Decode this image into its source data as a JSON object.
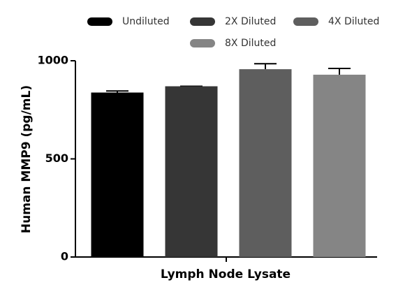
{
  "chart_data": {
    "type": "bar",
    "categories": [
      "Lymph Node Lysate"
    ],
    "xlabel": "Lymph Node Lysate",
    "ylabel": "Human MMP9 (pg/mL)",
    "ylim": [
      0,
      1000
    ],
    "yticks": [
      0,
      500,
      1000
    ],
    "series": [
      {
        "name": "Undiluted",
        "color": "#000000",
        "values": [
          838
        ],
        "errors": [
          8
        ]
      },
      {
        "name": "2X Diluted",
        "color": "#363636",
        "values": [
          870
        ],
        "errors": [
          0
        ]
      },
      {
        "name": "4X Diluted",
        "color": "#5e5e5e",
        "values": [
          957
        ],
        "errors": [
          28
        ]
      },
      {
        "name": "8X Diluted",
        "color": "#858585",
        "values": [
          929
        ],
        "errors": [
          32
        ]
      }
    ]
  }
}
